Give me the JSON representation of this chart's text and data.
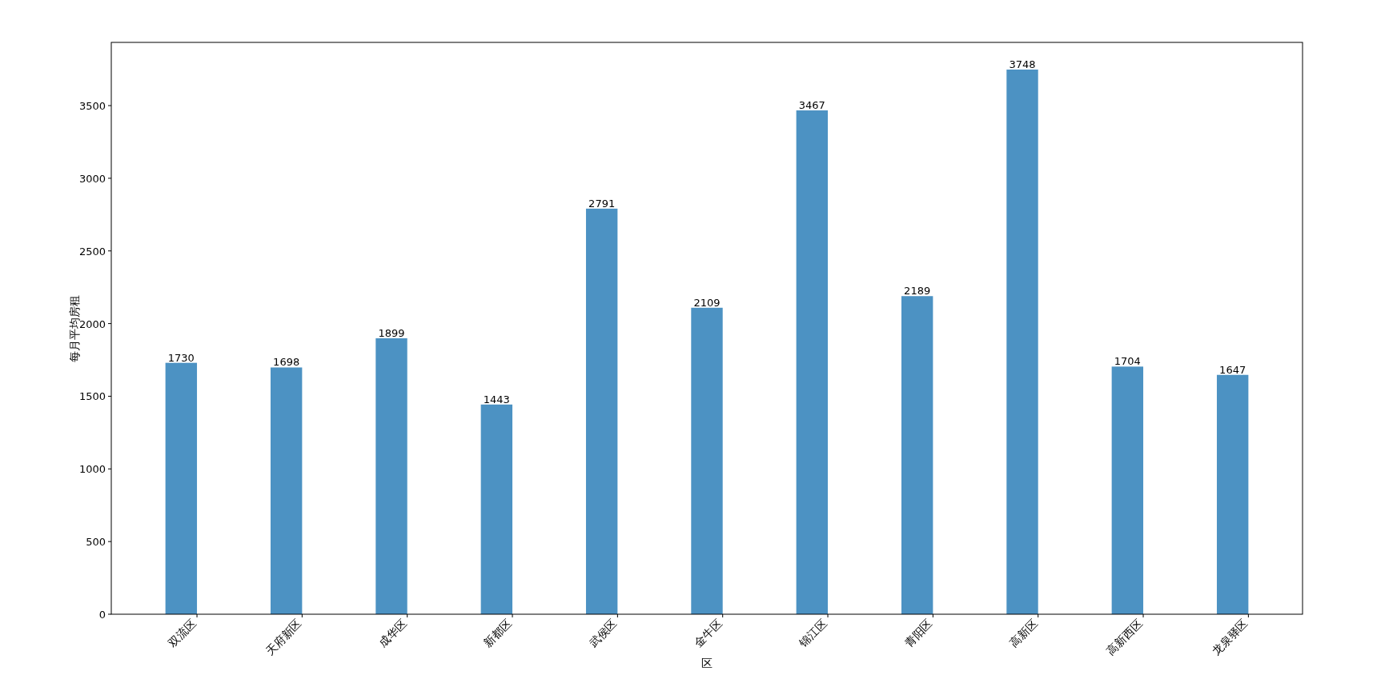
{
  "chart_data": {
    "type": "bar",
    "xlabel": "区",
    "ylabel": "每月平均房租",
    "categories": [
      "双流区",
      "天府新区",
      "成华区",
      "新都区",
      "武侯区",
      "金牛区",
      "锦江区",
      "青阳区",
      "高新区",
      "高新西区",
      "龙泉驿区"
    ],
    "values": [
      1730,
      1698,
      1899,
      1443,
      2791,
      2109,
      3467,
      2189,
      3748,
      1704,
      1647
    ],
    "color": "#4c92c3",
    "data_labels": true,
    "grid": false,
    "ylim": [
      0,
      3935
    ],
    "yticks": [
      0,
      500,
      1000,
      1500,
      2000,
      2500,
      3000,
      3500
    ]
  }
}
